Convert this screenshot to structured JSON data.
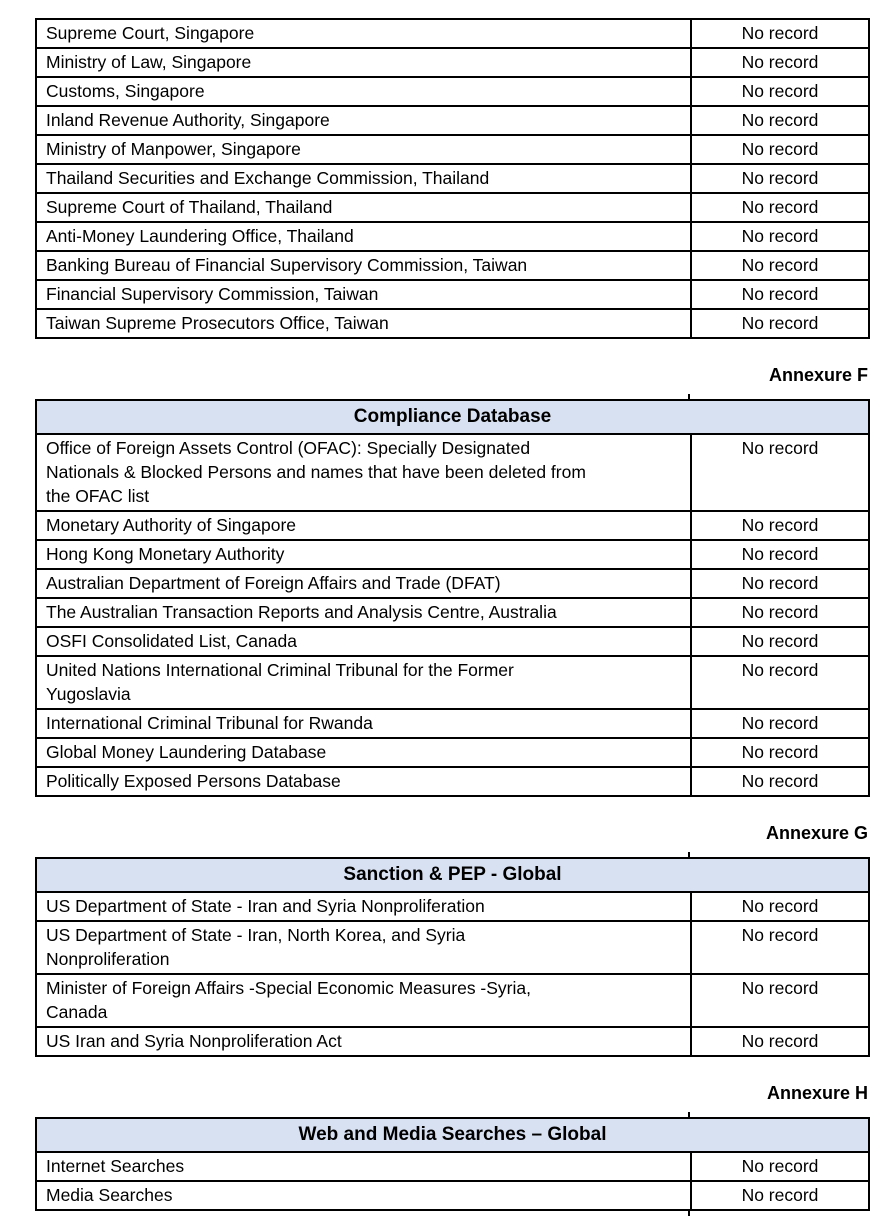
{
  "colors": {
    "header_fill": "#d8e1f2",
    "border": "#000000",
    "text": "#000000",
    "page_bg": "#ffffff"
  },
  "continuation_table": {
    "rows": [
      {
        "source": "Supreme Court, Singapore",
        "result": "No record"
      },
      {
        "source": "Ministry of Law, Singapore",
        "result": "No record"
      },
      {
        "source": "Customs, Singapore",
        "result": "No record"
      },
      {
        "source": "Inland Revenue Authority, Singapore",
        "result": "No record"
      },
      {
        "source": "Ministry of Manpower, Singapore",
        "result": "No record"
      },
      {
        "source": "Thailand Securities and Exchange Commission, Thailand",
        "result": "No record"
      },
      {
        "source": "Supreme Court of Thailand, Thailand",
        "result": "No record"
      },
      {
        "source": "Anti-Money Laundering Office, Thailand",
        "result": "No record"
      },
      {
        "source": "Banking Bureau of Financial Supervisory Commission, Taiwan",
        "result": "No record"
      },
      {
        "source": "Financial Supervisory Commission, Taiwan",
        "result": "No record"
      },
      {
        "source": "Taiwan Supreme Prosecutors Office, Taiwan",
        "result": "No record"
      }
    ]
  },
  "sections": [
    {
      "annexure_label": "Annexure F",
      "table_title": "Compliance Database",
      "rows": [
        {
          "source": "Office of Foreign Assets Control (OFAC): Specially Designated\nNationals & Blocked Persons and names that have been deleted from\nthe OFAC list",
          "result": "No record"
        },
        {
          "source": "Monetary Authority of Singapore",
          "result": "No record"
        },
        {
          "source": "Hong Kong Monetary Authority",
          "result": "No record"
        },
        {
          "source": "Australian Department of Foreign Affairs and Trade (DFAT)",
          "result": "No record"
        },
        {
          "source": "The Australian Transaction Reports and Analysis Centre, Australia",
          "result": "No record"
        },
        {
          "source": "OSFI Consolidated List, Canada",
          "result": "No record"
        },
        {
          "source": "United Nations International Criminal Tribunal for the Former\nYugoslavia",
          "result": "No record"
        },
        {
          "source": "International Criminal Tribunal for Rwanda",
          "result": "No record"
        },
        {
          "source": "Global Money Laundering Database",
          "result": "No record"
        },
        {
          "source": "Politically Exposed Persons Database",
          "result": "No record"
        }
      ]
    },
    {
      "annexure_label": "Annexure G",
      "table_title": "Sanction & PEP - Global",
      "rows": [
        {
          "source": "US Department of State - Iran and Syria Nonproliferation",
          "result": "No record"
        },
        {
          "source": "US Department of State - Iran, North Korea, and Syria\nNonproliferation",
          "result": "No record"
        },
        {
          "source": "Minister of Foreign Affairs -Special Economic Measures -Syria,\nCanada",
          "result": "No record"
        },
        {
          "source": "US Iran and Syria Nonproliferation Act",
          "result": "No record"
        }
      ]
    },
    {
      "annexure_label": "Annexure H",
      "table_title": "Web and Media Searches – Global",
      "rows": [
        {
          "source": "Internet Searches",
          "result": "No record"
        },
        {
          "source": "Media Searches",
          "result": "No record"
        }
      ]
    }
  ]
}
